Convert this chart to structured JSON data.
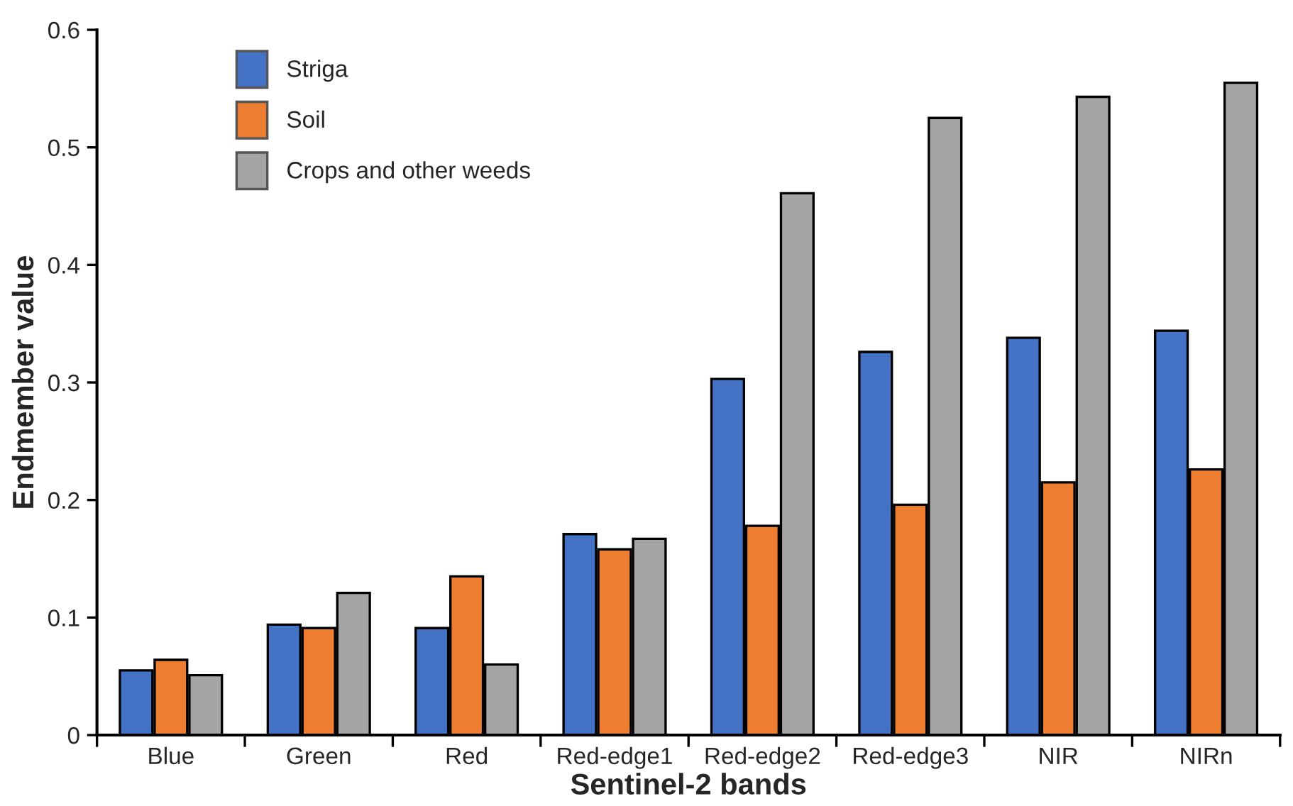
{
  "chart_data": {
    "type": "bar",
    "xlabel": "Sentinel-2 bands",
    "ylabel": "Endmember value",
    "categories": [
      "Blue",
      "Green",
      "Red",
      "Red-edge1",
      "Red-edge2",
      "Red-edge3",
      "NIR",
      "NIRn"
    ],
    "series": [
      {
        "name": "Striga",
        "color": "#4472c4",
        "values": [
          0.055,
          0.094,
          0.091,
          0.171,
          0.303,
          0.326,
          0.338,
          0.344
        ]
      },
      {
        "name": "Soil",
        "color": "#ed7d31",
        "values": [
          0.064,
          0.091,
          0.135,
          0.158,
          0.178,
          0.196,
          0.215,
          0.226
        ]
      },
      {
        "name": "Crops and other weeds",
        "color": "#a5a5a5",
        "values": [
          0.051,
          0.121,
          0.06,
          0.167,
          0.461,
          0.525,
          0.543,
          0.555
        ]
      }
    ],
    "ylim": [
      0,
      0.6
    ],
    "yticks": [
      {
        "value": 0,
        "label": "0"
      },
      0.1,
      0.2,
      0.3,
      0.4,
      0.5,
      0.6
    ],
    "grid": false,
    "legend": "top left"
  }
}
